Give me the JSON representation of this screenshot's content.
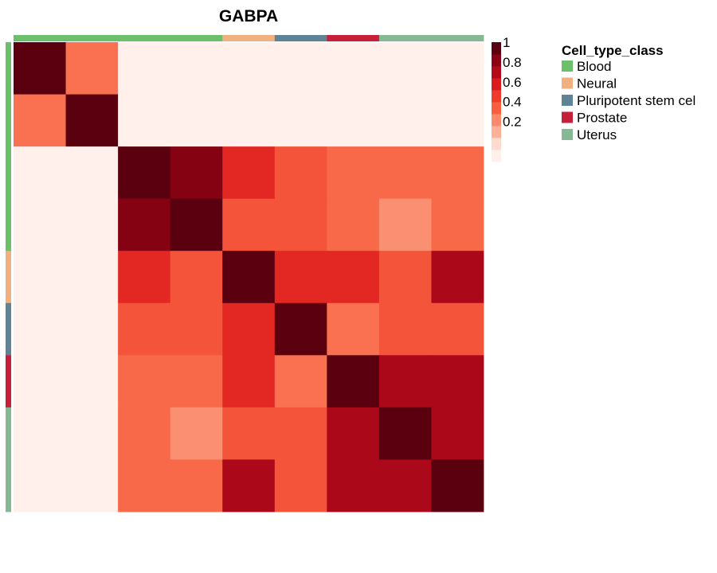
{
  "chart_data": {
    "type": "heatmap",
    "title": "GABPA",
    "values": [
      [
        1.0,
        0.4,
        0,
        0,
        0,
        0,
        0,
        0,
        0
      ],
      [
        0.4,
        1.0,
        0,
        0,
        0,
        0,
        0,
        0,
        0
      ],
      [
        0,
        0,
        1.0,
        0.9,
        0.62,
        0.48,
        0.42,
        0.42,
        0.42
      ],
      [
        0,
        0,
        0.9,
        1.0,
        0.48,
        0.48,
        0.42,
        0.32,
        0.42
      ],
      [
        0,
        0,
        0.62,
        0.48,
        1.0,
        0.62,
        0.62,
        0.48,
        0.8
      ],
      [
        0,
        0,
        0.48,
        0.48,
        0.62,
        1.0,
        0.4,
        0.48,
        0.48
      ],
      [
        0,
        0,
        0.42,
        0.42,
        0.62,
        0.4,
        1.0,
        0.8,
        0.8
      ],
      [
        0,
        0,
        0.42,
        0.32,
        0.48,
        0.48,
        0.8,
        1.0,
        0.8
      ],
      [
        0,
        0,
        0.42,
        0.42,
        0.8,
        0.48,
        0.8,
        0.8,
        1.0
      ]
    ],
    "cell_type_class": [
      "Blood",
      "Blood",
      "Blood",
      "Blood",
      "Neural",
      "Pluripotent stem cel",
      "Prostate",
      "Uterus",
      "Uterus"
    ],
    "colorbar": {
      "ticks": [
        1,
        0.8,
        0.6,
        0.4,
        0.2
      ],
      "tick_labels": [
        "1",
        "0.8",
        "0.6",
        "0.4",
        "0.2"
      ],
      "range": [
        0,
        1
      ],
      "swatches": [
        "#fff0ec",
        "#fddbcf",
        "#fcb09a",
        "#fb8a6b",
        "#f7603f",
        "#ef3b2c",
        "#da1a1e",
        "#b30a1a",
        "#8a0213",
        "#5a000f"
      ]
    },
    "legend": {
      "title": "Cell_type_class",
      "entries": [
        {
          "label": "Blood",
          "color": "#6cc06c"
        },
        {
          "label": "Neural",
          "color": "#f0b07f"
        },
        {
          "label": "Pluripotent stem cel",
          "color": "#5f8396"
        },
        {
          "label": "Prostate",
          "color": "#c71f3a"
        },
        {
          "label": "Uterus",
          "color": "#87b896"
        }
      ]
    }
  }
}
